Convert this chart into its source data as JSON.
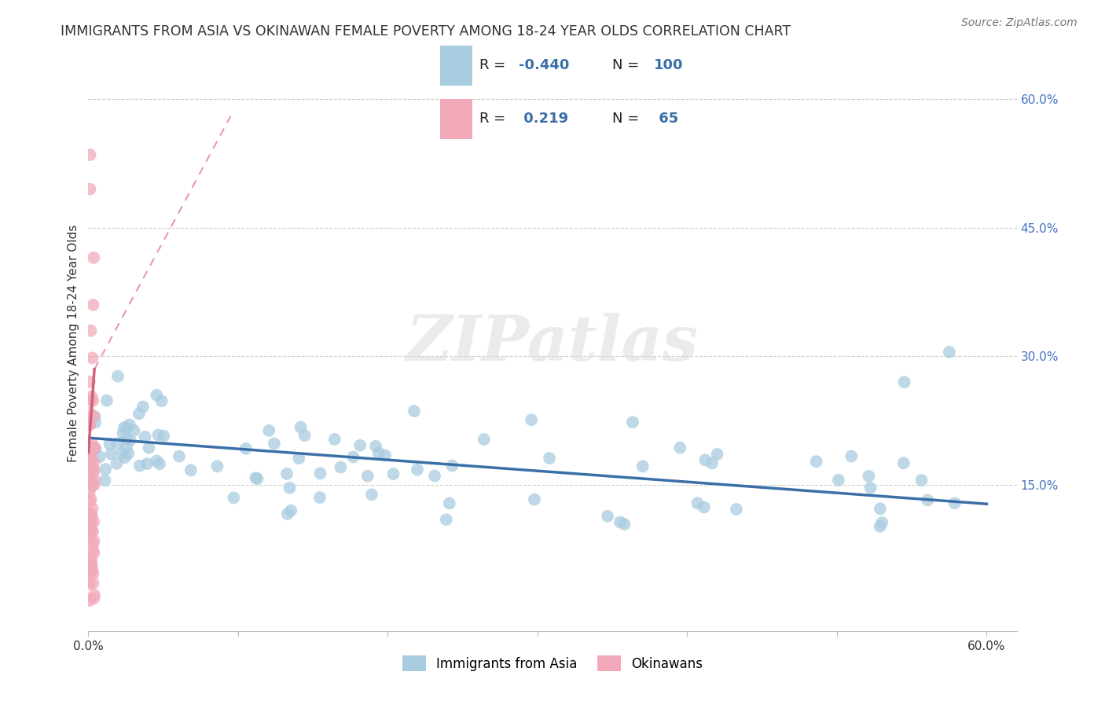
{
  "title": "IMMIGRANTS FROM ASIA VS OKINAWAN FEMALE POVERTY AMONG 18-24 YEAR OLDS CORRELATION CHART",
  "source": "Source: ZipAtlas.com",
  "ylabel": "Female Poverty Among 18-24 Year Olds",
  "xlim": [
    0.0,
    0.62
  ],
  "ylim": [
    -0.02,
    0.65
  ],
  "right_y_ticks": [
    0.15,
    0.3,
    0.45,
    0.6
  ],
  "right_y_tick_labels": [
    "15.0%",
    "30.0%",
    "45.0%",
    "60.0%"
  ],
  "legend_labels": [
    "Immigrants from Asia",
    "Okinawans"
  ],
  "blue_R": "-0.440",
  "blue_N": "100",
  "pink_R": "0.219",
  "pink_N": "65",
  "blue_color": "#A8CCE0",
  "pink_color": "#F2AABB",
  "blue_line_color": "#3A6FA8",
  "pink_line_color": "#D0607A",
  "pink_dash_color": "#E899AB",
  "watermark": "ZIPatlas",
  "grid_color": "#CCCCCC",
  "axis_color": "#BBBBBB",
  "text_color": "#333333",
  "right_tick_color": "#4472C4",
  "legend_border_color": "#CCCCCC",
  "source_color": "#777777"
}
